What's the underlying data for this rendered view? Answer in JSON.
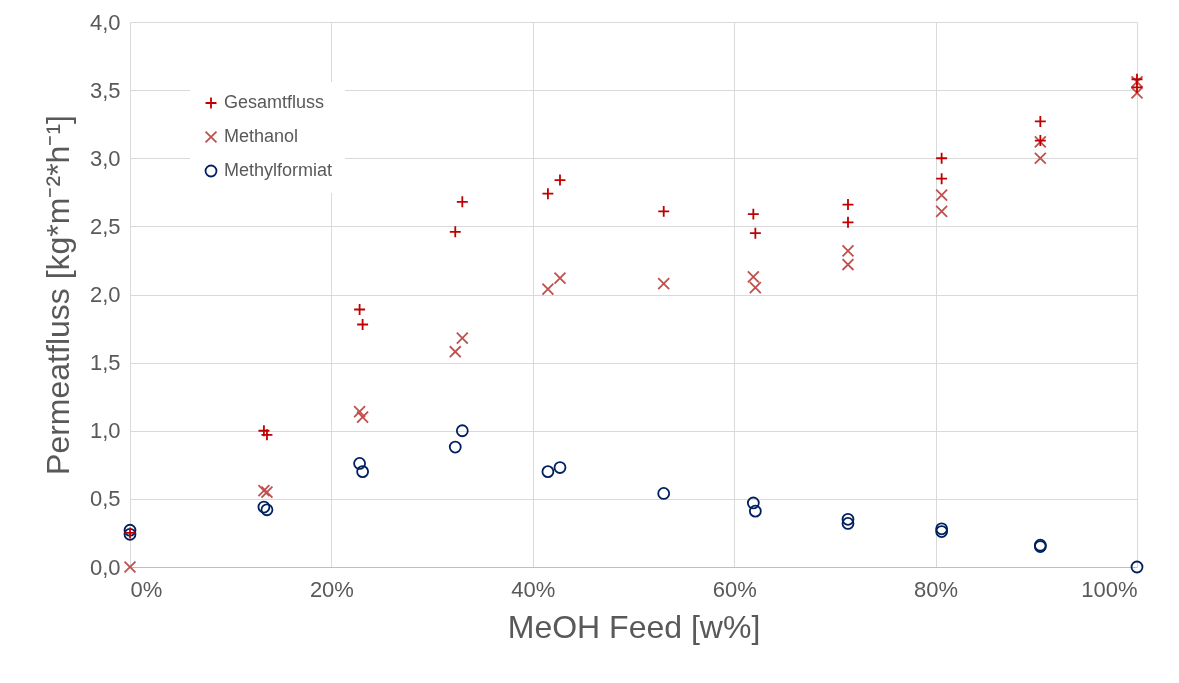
{
  "chart_data": {
    "type": "scatter",
    "xlabel": "MeOH Feed [w%]",
    "ylabel": "Permeatfluss [kg*m⁻²*h⁻¹]",
    "xlim": [
      0,
      100
    ],
    "xticks": [
      {
        "value": 0,
        "label": "0%"
      },
      {
        "value": 20,
        "label": "20%"
      },
      {
        "value": 40,
        "label": "40%"
      },
      {
        "value": 60,
        "label": "60%"
      },
      {
        "value": 80,
        "label": "80%"
      },
      {
        "value": 100,
        "label": "100%"
      }
    ],
    "ylim": [
      0,
      4
    ],
    "yticks": [
      {
        "value": 0,
        "label": "0,0"
      },
      {
        "value": 0.5,
        "label": "0,5"
      },
      {
        "value": 1,
        "label": "1,0"
      },
      {
        "value": 1.5,
        "label": "1,5"
      },
      {
        "value": 2,
        "label": "2,0"
      },
      {
        "value": 2.5,
        "label": "2,5"
      },
      {
        "value": 3,
        "label": "3,0"
      },
      {
        "value": 3.5,
        "label": "3,5"
      },
      {
        "value": 4,
        "label": "4,0"
      }
    ],
    "grid": true,
    "legend": "top left",
    "series": [
      {
        "name": "Gesamtfluss",
        "color": "#c00000",
        "marker": "cross",
        "x": [
          0,
          13.3,
          13.6,
          22.8,
          23.1,
          32.3,
          33.0,
          41.5,
          42.7,
          53.0,
          61.9,
          62.1,
          71.3,
          71.3,
          80.6,
          80.6,
          90.4,
          90.4,
          100,
          100
        ],
        "values": [
          0.25,
          1.0,
          0.97,
          1.89,
          1.78,
          2.46,
          2.68,
          2.74,
          2.84,
          2.61,
          2.59,
          2.45,
          2.66,
          2.53,
          3.0,
          2.85,
          3.27,
          3.13,
          3.58,
          3.52
        ]
      },
      {
        "name": "Methanol",
        "color": "#c0504d",
        "marker": "x",
        "x": [
          0,
          13.3,
          13.6,
          22.8,
          23.1,
          32.3,
          33.0,
          41.5,
          42.7,
          53.0,
          61.9,
          62.1,
          71.3,
          71.3,
          80.6,
          80.6,
          90.4,
          90.4,
          100,
          100
        ],
        "values": [
          0,
          0.56,
          0.55,
          1.14,
          1.1,
          1.58,
          1.68,
          2.04,
          2.12,
          2.08,
          2.13,
          2.05,
          2.32,
          2.22,
          2.73,
          2.61,
          3.12,
          3.0,
          3.56,
          3.48
        ]
      },
      {
        "name": "Methylformiat",
        "color": "#002060",
        "marker": "circle",
        "x": [
          0,
          0,
          13.3,
          13.6,
          22.8,
          23.1,
          32.3,
          33.0,
          41.5,
          42.7,
          53.0,
          61.9,
          62.1,
          71.3,
          71.3,
          80.6,
          80.6,
          90.4,
          90.4,
          100
        ],
        "values": [
          0.27,
          0.24,
          0.44,
          0.42,
          0.76,
          0.7,
          0.88,
          1.0,
          0.7,
          0.73,
          0.54,
          0.47,
          0.41,
          0.35,
          0.32,
          0.28,
          0.26,
          0.16,
          0.15,
          0.0
        ]
      }
    ]
  }
}
